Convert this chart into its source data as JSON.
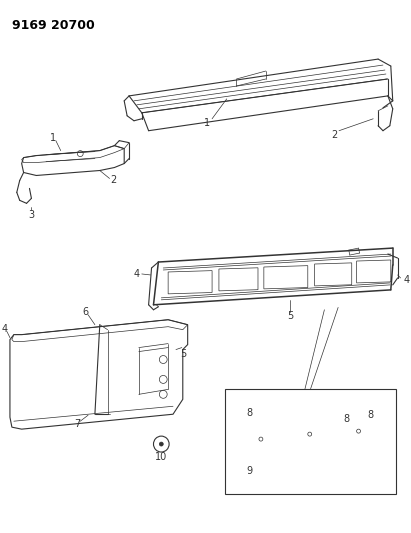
{
  "background_color": "#ffffff",
  "figure_width": 4.11,
  "figure_height": 5.33,
  "dpi": 100,
  "header_text": "9169 20700",
  "line_color": "#333333",
  "thin_lw": 0.5,
  "med_lw": 0.8,
  "thick_lw": 1.1
}
